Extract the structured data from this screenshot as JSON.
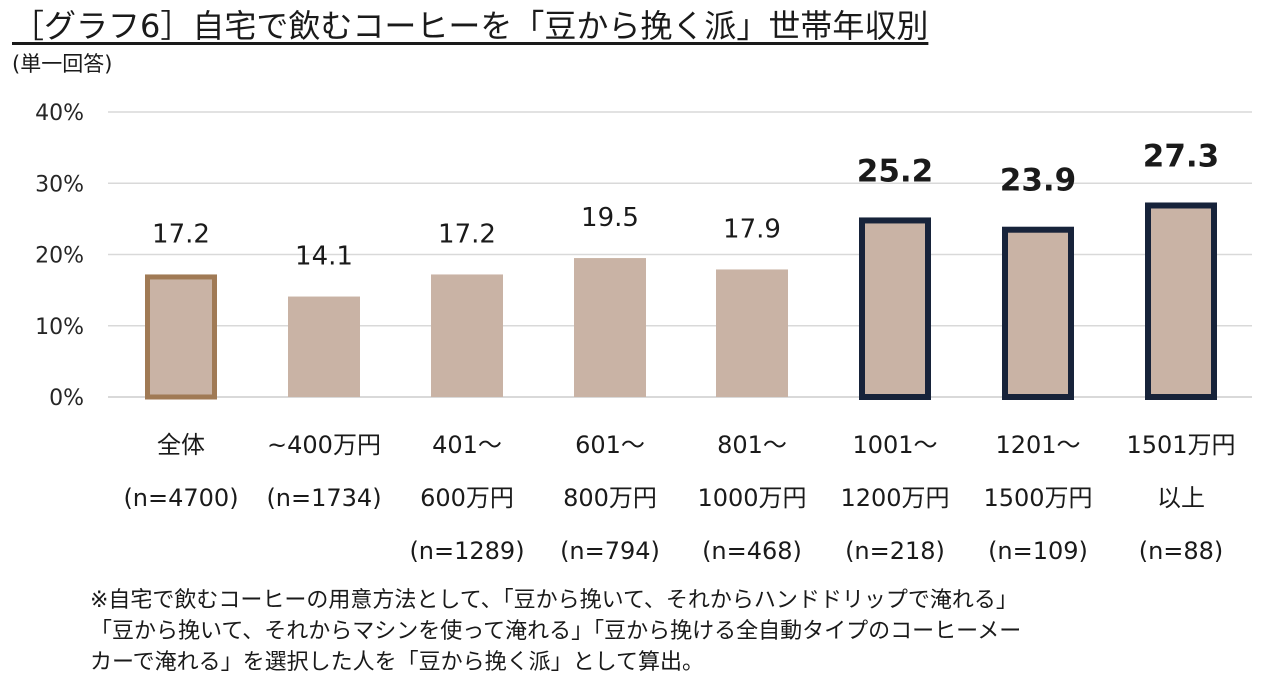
{
  "title": "［グラフ6］自宅で飲むコーヒーを「豆から挽く派」世帯年収別",
  "subtitle": "(単一回答)",
  "chart_data": {
    "type": "bar",
    "title": "［グラフ6］自宅で飲むコーヒーを「豆から挽く派」世帯年収別",
    "subtitle": "(単一回答)",
    "categories": [
      [
        "全体",
        "(n=4700)"
      ],
      [
        "~400万円",
        "(n=1734)"
      ],
      [
        "401～",
        "600万円",
        "(n=1289)"
      ],
      [
        "601～",
        "800万円",
        "(n=794)"
      ],
      [
        "801～",
        "1000万円",
        "(n=468)"
      ],
      [
        "1001～",
        "1200万円",
        "(n=218)"
      ],
      [
        "1201～",
        "1500万円",
        "(n=109)"
      ],
      [
        "1501万円",
        "以上",
        "(n=88)"
      ]
    ],
    "values": [
      17.2,
      14.1,
      17.2,
      19.5,
      17.9,
      25.2,
      23.9,
      27.3
    ],
    "value_labels": [
      "17.2",
      "14.1",
      "17.2",
      "19.5",
      "17.9",
      "25.2",
      "23.9",
      "27.3"
    ],
    "highlight": [
      "overall",
      "none",
      "none",
      "none",
      "none",
      "high",
      "high",
      "high"
    ],
    "yticks": [
      0,
      10,
      20,
      30,
      40
    ],
    "ytick_labels": [
      "0%",
      "10%",
      "20%",
      "30%",
      "40%"
    ],
    "ylim": [
      0,
      40
    ],
    "xlabel": "",
    "ylabel": "",
    "grid": true,
    "colors": {
      "bar_fill": "#c9b3a5",
      "overall_border": "#a07a55",
      "highlight_border": "#17233a",
      "grid": "#d9d9d9"
    }
  },
  "footnote": [
    "※自宅で飲むコーヒーの用意方法として、「豆から挽いて、それからハンドドリップで淹れる」",
    "「豆から挽いて、それからマシンを使って淹れる」「豆から挽ける全自動タイプのコーヒーメー",
    "カーで淹れる」を選択した人を「豆から挽く派」として算出。"
  ]
}
